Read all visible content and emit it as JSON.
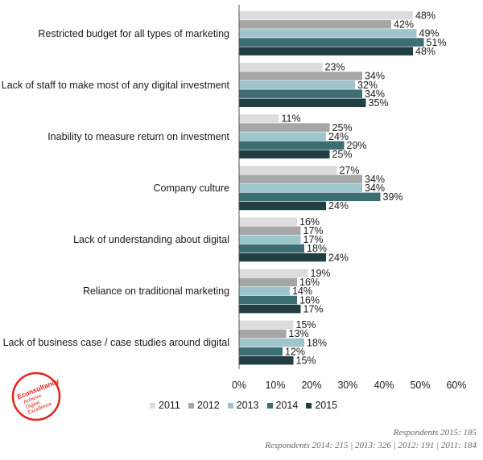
{
  "chart_data": {
    "type": "bar",
    "orientation": "horizontal",
    "categories": [
      "Restricted budget for all types of marketing",
      "Lack of staff to make most of any digital investment",
      "Inability to measure return on investment",
      "Company culture",
      "Lack of understanding about digital",
      "Reliance on traditional marketing",
      "Lack of business case / case studies around digital"
    ],
    "series": [
      {
        "name": "2011",
        "values": [
          48,
          23,
          11,
          27,
          16,
          19,
          15
        ],
        "color": "#dcdcdc"
      },
      {
        "name": "2012",
        "values": [
          42,
          34,
          25,
          34,
          17,
          16,
          13
        ],
        "color": "#a6a6a6"
      },
      {
        "name": "2013",
        "values": [
          49,
          32,
          24,
          34,
          17,
          14,
          18
        ],
        "color": "#9ec4cc"
      },
      {
        "name": "2014",
        "values": [
          51,
          34,
          29,
          39,
          18,
          16,
          12
        ],
        "color": "#3c6e74"
      },
      {
        "name": "2015",
        "values": [
          48,
          35,
          25,
          24,
          24,
          17,
          15
        ],
        "color": "#213f43"
      }
    ],
    "value_suffix": "%",
    "xlim": [
      0,
      60
    ],
    "xticks": [
      0,
      10,
      20,
      30,
      40,
      50,
      60
    ],
    "xtick_labels": [
      "0%",
      "10%",
      "20%",
      "30%",
      "40%",
      "50%",
      "60%"
    ],
    "legend_position": "bottom",
    "grid": false
  },
  "footnotes": {
    "line1": "Respondents 2015: 185",
    "line2": "Respondents 2014: 215 | 2013: 326 | 2012: 191 | 2011: 184"
  },
  "logo": {
    "brand": "Econsultancy",
    "tagline": "Achieve Digital Excellence"
  },
  "colors": {
    "logo_red": "#e2231a",
    "axis": "#555555"
  }
}
